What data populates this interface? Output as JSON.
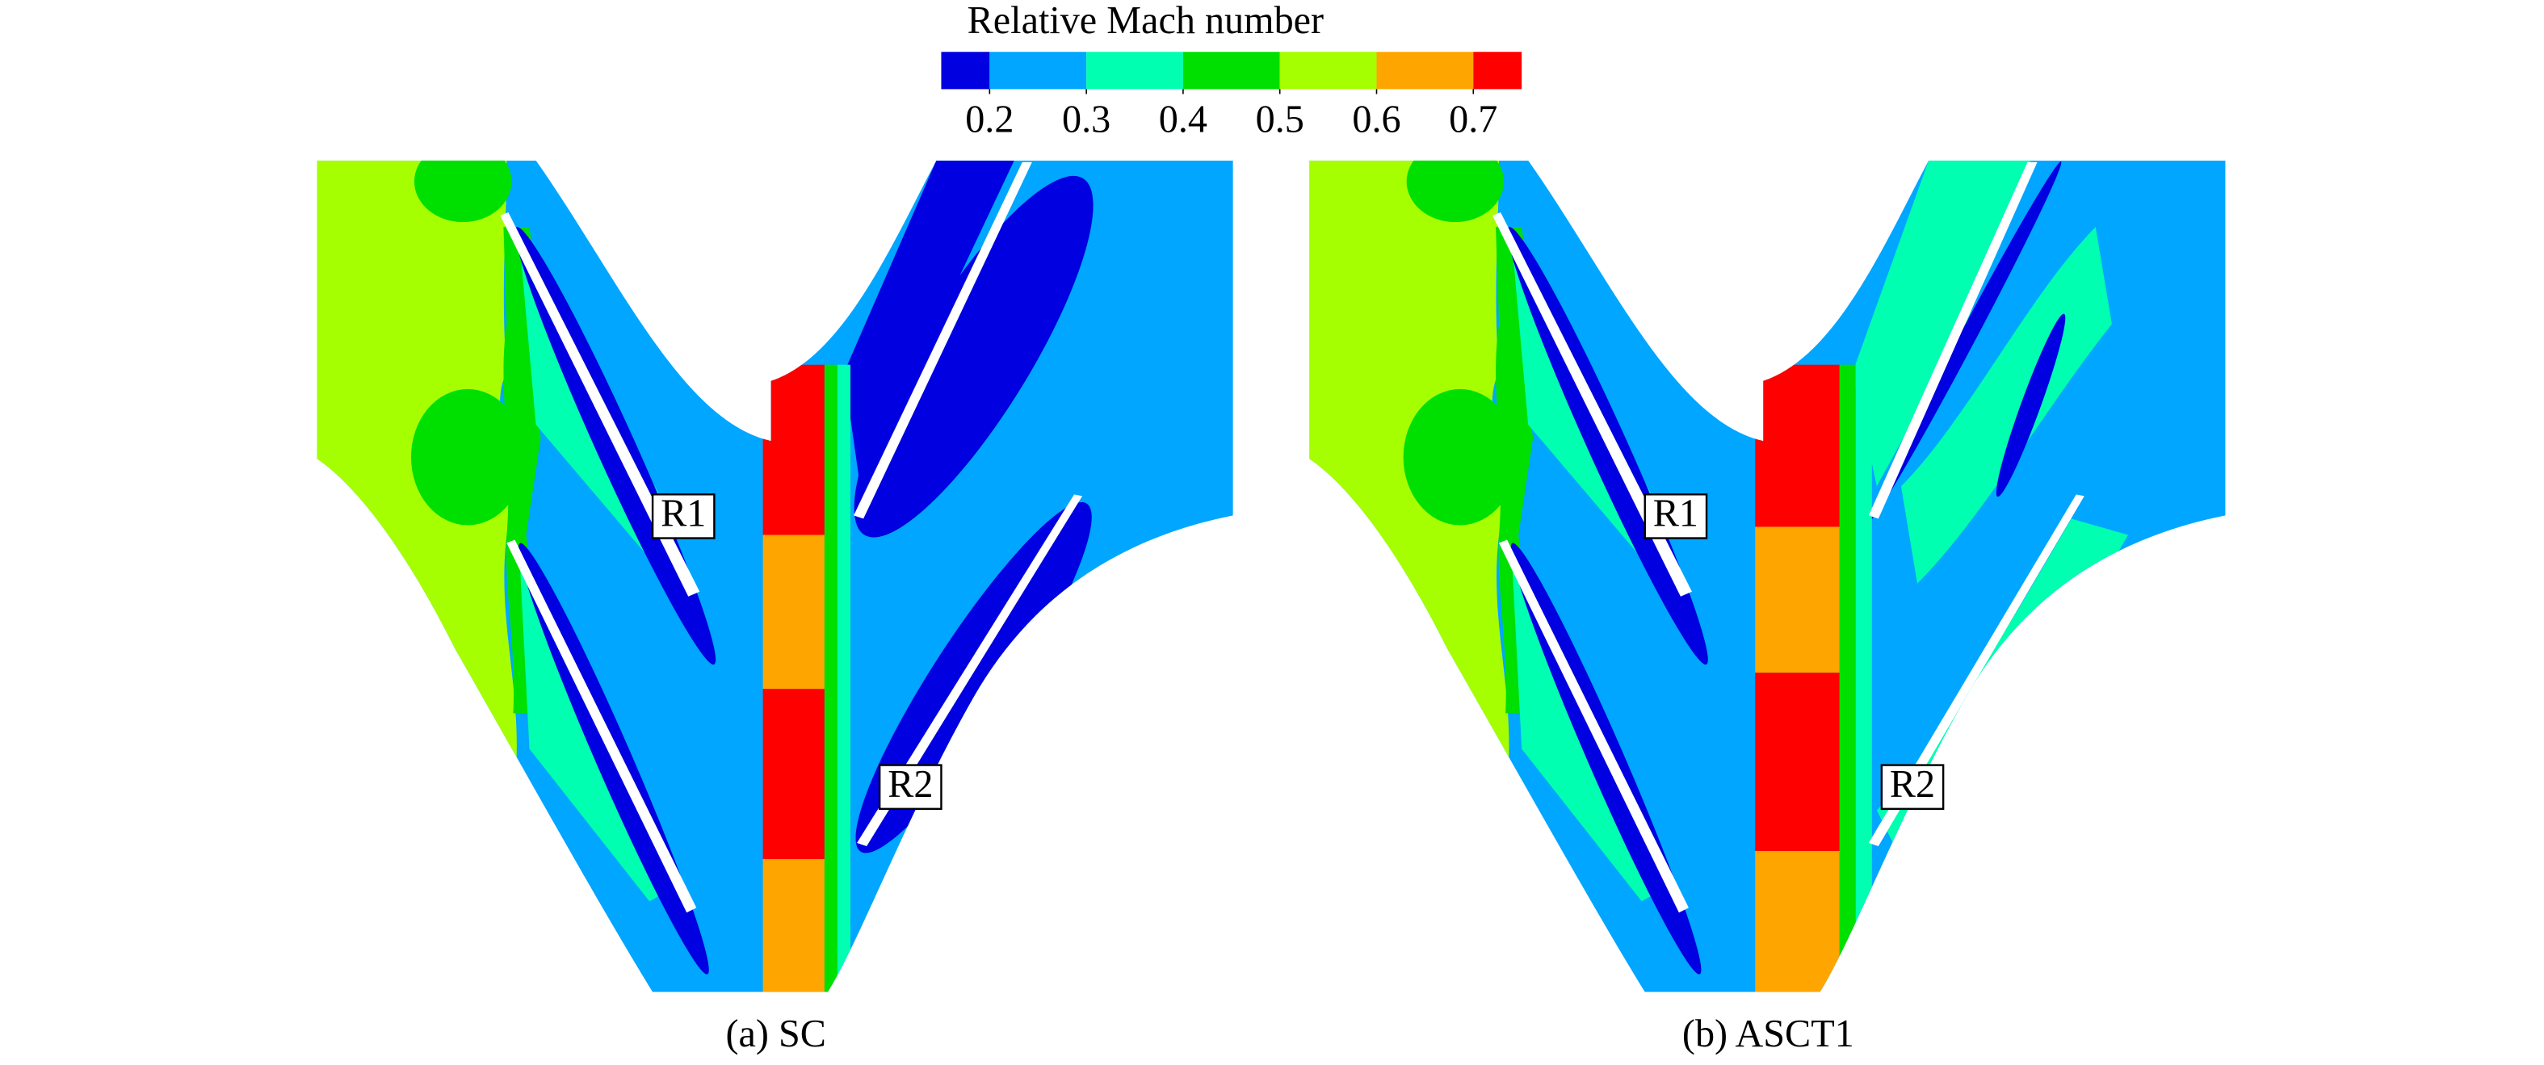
{
  "colorbar": {
    "title": "Relative Mach number",
    "range": [
      0.15,
      0.75
    ],
    "ticks": [
      0.2,
      0.3,
      0.4,
      0.5,
      0.6,
      0.7
    ],
    "colors": [
      "#0000e0",
      "#00a6ff",
      "#00ffb0",
      "#00e000",
      "#a6ff00",
      "#ffa500",
      "#ff0000"
    ]
  },
  "panels": [
    {
      "caption": "(a) SC",
      "labels": [
        "R1",
        "R2"
      ]
    },
    {
      "caption": "(b) ASCT1",
      "labels": [
        "R1",
        "R2"
      ]
    }
  ]
}
